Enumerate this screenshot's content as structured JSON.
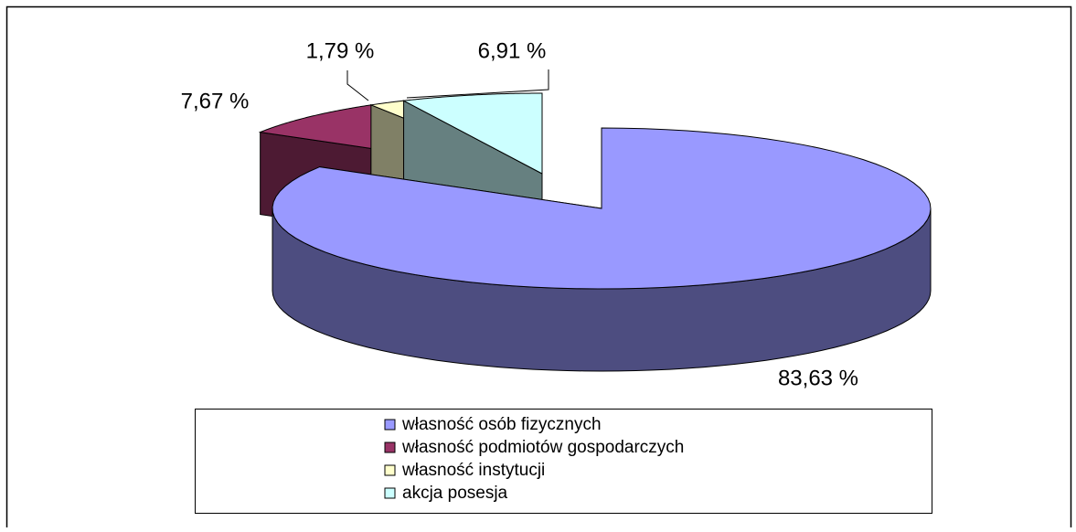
{
  "chart_data": {
    "type": "pie3d",
    "categories": [
      "własność osób fizycznych",
      "własność podmiotów gospodarczych",
      "własność instytucji",
      "akcja posesja"
    ],
    "values": [
      83.63,
      7.67,
      1.79,
      6.91
    ],
    "value_labels": [
      "83,63 %",
      "7,67 %",
      "1,79 %",
      "6,91 %"
    ],
    "colors": [
      "#9999ff",
      "#993366",
      "#ffffcc",
      "#ccffff"
    ],
    "legend": "bottom"
  }
}
